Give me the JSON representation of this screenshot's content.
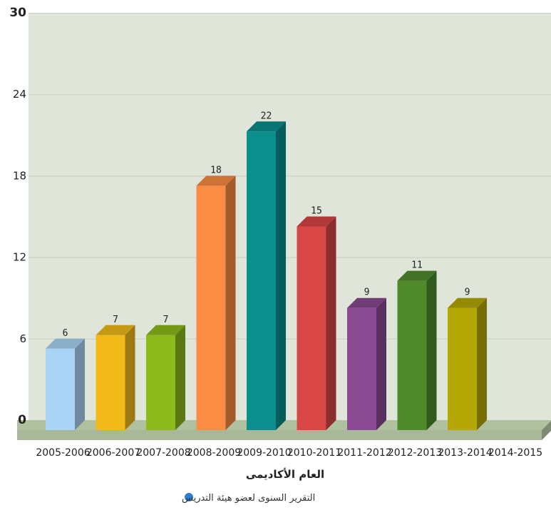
{
  "chart_data": {
    "type": "bar",
    "title": "",
    "xlabel": "العام الأكاديمى",
    "ylabel": "",
    "ylim": [
      0,
      30
    ],
    "yticks": [
      0,
      6,
      12,
      18,
      24,
      30
    ],
    "grid": true,
    "legend_position": "bottom-center",
    "categories": [
      "2005-2006",
      "2006-2007",
      "2007-2008",
      "2008-2009",
      "2009-2010",
      "2010-2011",
      "2011-2012",
      "2012-2013",
      "2013-2014",
      "2014-2015"
    ],
    "series": [
      {
        "name": "التقرير السنوى لعضو هيئة التدريس",
        "values": [
          6,
          7,
          7,
          18,
          22,
          15,
          9,
          11,
          9,
          0
        ],
        "data_labels": [
          "6",
          "7",
          "7",
          "18",
          "22",
          "15",
          "9",
          "11",
          "9",
          ""
        ]
      }
    ],
    "bar_colors": [
      "#aad4f5",
      "#f2bb1a",
      "#8cba1a",
      "#fb8c44",
      "#0a8f8c",
      "#d94646",
      "#8a4a93",
      "#4f8a2c",
      "#b5a806",
      "#888888"
    ],
    "colors": {
      "plot_background": "#dfe5d8",
      "gridline": "#c7cdbf",
      "floor": "#a8b898",
      "legend_marker": "#2d7fd1"
    }
  }
}
